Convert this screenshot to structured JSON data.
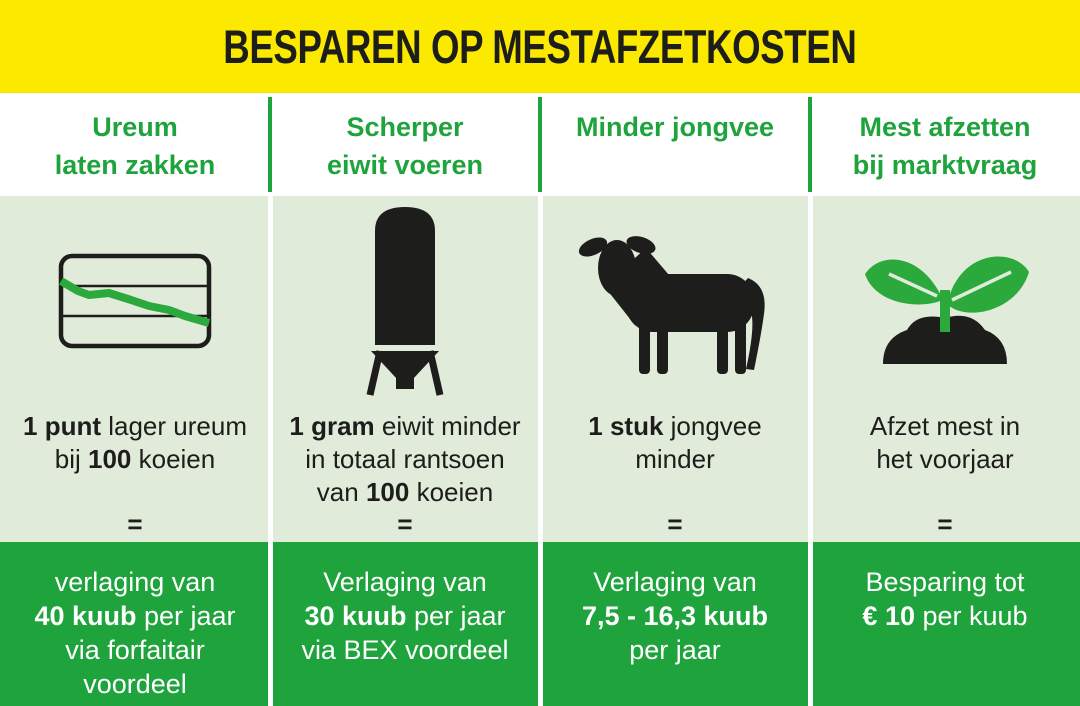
{
  "header": {
    "title": "BESPAREN OP MESTAFZETKOSTEN"
  },
  "colors": {
    "banner_yellow": "#FBEA00",
    "brand_green": "#1FA33C",
    "light_green_panel": "#E1EBD9",
    "leaf_green": "#2CA93C",
    "text_black": "#1d1d1b",
    "white": "#ffffff"
  },
  "equals_symbol": "=",
  "columns": [
    {
      "id": "ureum",
      "icon": "declining-chart-icon",
      "title_lines": [
        "Ureum",
        "laten zakken"
      ],
      "description_lines": [
        [
          {
            "t": "1 punt",
            "b": true
          },
          {
            "t": " lager ureum",
            "b": false
          }
        ],
        [
          {
            "t": "bij ",
            "b": false
          },
          {
            "t": "100",
            "b": true
          },
          {
            "t": " koeien",
            "b": false
          }
        ]
      ],
      "result_lines": [
        [
          {
            "t": "verlaging van",
            "b": false
          }
        ],
        [
          {
            "t": "40 kuub",
            "b": true
          },
          {
            "t": " per jaar",
            "b": false
          }
        ],
        [
          {
            "t": "via forfaitair",
            "b": false
          }
        ],
        [
          {
            "t": "voordeel",
            "b": false
          }
        ]
      ]
    },
    {
      "id": "eiwit",
      "icon": "feed-silo-icon",
      "title_lines": [
        "Scherper",
        "eiwit voeren"
      ],
      "description_lines": [
        [
          {
            "t": "1 gram",
            "b": true
          },
          {
            "t": " eiwit minder",
            "b": false
          }
        ],
        [
          {
            "t": "in totaal rantsoen",
            "b": false
          }
        ],
        [
          {
            "t": "van ",
            "b": false
          },
          {
            "t": "100",
            "b": true
          },
          {
            "t": " koeien",
            "b": false
          }
        ]
      ],
      "result_lines": [
        [
          {
            "t": "Verlaging van",
            "b": false
          }
        ],
        [
          {
            "t": "30 kuub",
            "b": true
          },
          {
            "t": " per jaar",
            "b": false
          }
        ],
        [
          {
            "t": "via BEX voordeel",
            "b": false
          }
        ]
      ]
    },
    {
      "id": "jongvee",
      "icon": "calf-icon",
      "title_lines": [
        "Minder jongvee"
      ],
      "description_lines": [
        [
          {
            "t": "1 stuk",
            "b": true
          },
          {
            "t": " jongvee",
            "b": false
          }
        ],
        [
          {
            "t": "minder",
            "b": false
          }
        ]
      ],
      "result_lines": [
        [
          {
            "t": "Verlaging van",
            "b": false
          }
        ],
        [
          {
            "t": "7,5 - 16,3 kuub",
            "b": true
          }
        ],
        [
          {
            "t": "per jaar",
            "b": false
          }
        ]
      ]
    },
    {
      "id": "afzetten",
      "icon": "seedling-icon",
      "title_lines": [
        "Mest afzetten",
        "bij marktvraag"
      ],
      "description_lines": [
        [
          {
            "t": "Afzet mest in",
            "b": false
          }
        ],
        [
          {
            "t": "het voorjaar",
            "b": false
          }
        ]
      ],
      "result_lines": [
        [
          {
            "t": "Besparing tot",
            "b": false
          }
        ],
        [
          {
            "t": "€ 10",
            "b": true
          },
          {
            "t": " per kuub",
            "b": false
          }
        ]
      ]
    }
  ]
}
